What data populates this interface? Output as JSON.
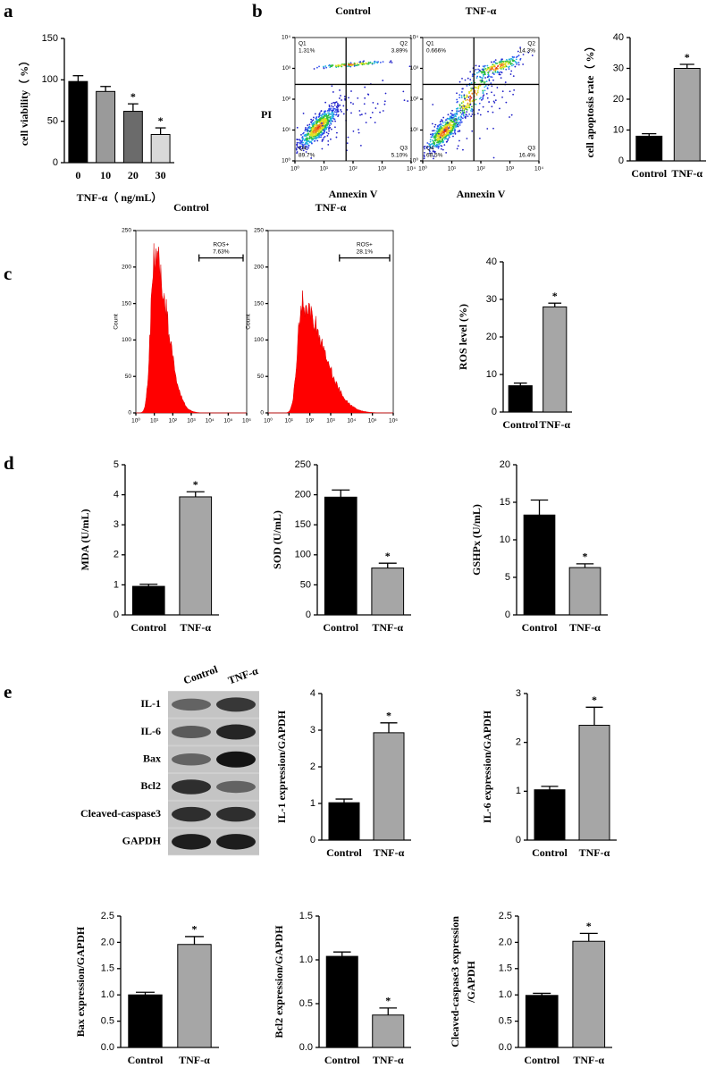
{
  "panels": [
    "a",
    "b",
    "c",
    "d",
    "e"
  ],
  "blot": {
    "lanes": [
      "Control",
      "TNF-α"
    ],
    "bands": [
      "IL-1",
      "IL-6",
      "Bax",
      "Bcl2",
      "Cleaved-caspase3",
      "GAPDH"
    ]
  },
  "chart_data": [
    {
      "type": "bar",
      "ylabel": "cell viability（ %）",
      "xlabel": "TNF-α（ ng/mL）",
      "categories": [
        "0",
        "10",
        "20",
        "30"
      ],
      "values": [
        98,
        86,
        62,
        34
      ],
      "errors": [
        7,
        6,
        9,
        8
      ],
      "colors": [
        "#000000",
        "#9a9a9a",
        "#6b6b6b",
        "#d9d9d9"
      ],
      "stars": [
        null,
        null,
        "*",
        "*"
      ],
      "ylim": [
        0,
        150
      ],
      "yticks": [
        0,
        50,
        100,
        150
      ]
    },
    {
      "type": "flow",
      "title": "Control",
      "xlabel": "Annexin V",
      "ylabel": "PI",
      "log": true,
      "xlim": [
        1,
        10000
      ],
      "ylim": [
        1,
        10000
      ],
      "xticks": [
        {
          "value": 1,
          "label": "10⁰"
        },
        {
          "value": 10,
          "label": "10¹"
        },
        {
          "value": 100,
          "label": "10²"
        },
        {
          "value": 1000,
          "label": "10³"
        },
        {
          "value": 10000,
          "label": "10⁴"
        }
      ],
      "yticks": [
        {
          "value": 1,
          "label": "10⁰"
        },
        {
          "value": 10,
          "label": "10¹"
        },
        {
          "value": 100,
          "label": "10²"
        },
        {
          "value": 1000,
          "label": "10³"
        },
        {
          "value": 10000,
          "label": "10⁴"
        }
      ],
      "quadrants": [
        {
          "name": "Q1",
          "label": "1.31%"
        },
        {
          "name": "Q2",
          "label": "3.89%"
        },
        {
          "name": "Q3",
          "label": "5.10%"
        },
        {
          "name": "Q4",
          "label": "89.7%"
        }
      ]
    },
    {
      "type": "flow",
      "title": "TNF-α",
      "xlabel": "Annexin V",
      "log": true,
      "xlim": [
        1,
        10000
      ],
      "ylim": [
        1,
        10000
      ],
      "xticks": [
        {
          "value": 1,
          "label": "10⁰"
        },
        {
          "value": 10,
          "label": "10¹"
        },
        {
          "value": 100,
          "label": "10²"
        },
        {
          "value": 1000,
          "label": "10³"
        },
        {
          "value": 10000,
          "label": "10⁴"
        }
      ],
      "yticks": [
        {
          "value": 1,
          "label": "10⁰"
        },
        {
          "value": 10,
          "label": "10¹"
        },
        {
          "value": 100,
          "label": "10²"
        },
        {
          "value": 1000,
          "label": "10³"
        },
        {
          "value": 10000,
          "label": "10⁴"
        }
      ],
      "quadrants": [
        {
          "name": "Q1",
          "label": "0.666%"
        },
        {
          "name": "Q2",
          "label": "14.3%"
        },
        {
          "name": "Q3",
          "label": "16.4%"
        },
        {
          "name": "Q4",
          "label": "68.5%"
        }
      ]
    },
    {
      "type": "bar",
      "ylabel": "cell apoptosis rate（ %）",
      "categories": [
        "Control",
        "TNF-α"
      ],
      "values": [
        8,
        30
      ],
      "errors": [
        0.8,
        1.3
      ],
      "colors": [
        "#000000",
        "#a6a6a6"
      ],
      "stars": [
        null,
        "*"
      ],
      "ylim": [
        0,
        40
      ],
      "yticks": [
        0,
        10,
        20,
        30,
        40
      ]
    },
    {
      "type": "flow-histogram",
      "title": "Control",
      "ylabel": "Count",
      "gate": {
        "name": "ROS+",
        "label": "7.63%"
      },
      "log": true,
      "xlim": [
        1,
        1000000
      ],
      "ylim": [
        0,
        250
      ],
      "xticks": [
        {
          "value": 1,
          "label": "10⁰"
        },
        {
          "value": 10,
          "label": "10¹"
        },
        {
          "value": 100,
          "label": "10²"
        },
        {
          "value": 1000,
          "label": "10³"
        },
        {
          "value": 10000,
          "label": "10⁴"
        },
        {
          "value": 100000,
          "label": "10⁵"
        },
        {
          "value": 1000000,
          "label": "10⁶"
        }
      ],
      "yticks": [
        0,
        50,
        100,
        150,
        200,
        250
      ]
    },
    {
      "type": "flow-histogram",
      "title": "TNF-α",
      "ylabel": "Count",
      "gate": {
        "name": "ROS+",
        "label": "28.1%"
      },
      "log": true,
      "xlim": [
        1,
        1000000
      ],
      "ylim": [
        0,
        250
      ],
      "xticks": [
        {
          "value": 1,
          "label": "10⁰"
        },
        {
          "value": 10,
          "label": "10¹"
        },
        {
          "value": 100,
          "label": "10²"
        },
        {
          "value": 1000,
          "label": "10³"
        },
        {
          "value": 10000,
          "label": "10⁴"
        },
        {
          "value": 100000,
          "label": "10⁵"
        },
        {
          "value": 1000000,
          "label": "10⁶"
        }
      ],
      "yticks": [
        0,
        50,
        100,
        150,
        200,
        250
      ]
    },
    {
      "type": "bar",
      "ylabel": "ROS level (%)",
      "categories": [
        "Control",
        "TNF-α"
      ],
      "values": [
        7,
        28
      ],
      "errors": [
        0.7,
        1
      ],
      "colors": [
        "#000000",
        "#a6a6a6"
      ],
      "stars": [
        null,
        "*"
      ],
      "ylim": [
        0,
        40
      ],
      "yticks": [
        0,
        10,
        20,
        30,
        40
      ]
    },
    {
      "type": "bar",
      "ylabel": "MDA (U/mL)",
      "categories": [
        "Control",
        "TNF-α"
      ],
      "values": [
        0.95,
        3.93
      ],
      "errors": [
        0.07,
        0.17
      ],
      "colors": [
        "#000000",
        "#a6a6a6"
      ],
      "stars": [
        null,
        "*"
      ],
      "ylim": [
        0,
        5
      ],
      "yticks": [
        0,
        1,
        2,
        3,
        4,
        5
      ]
    },
    {
      "type": "bar",
      "ylabel": "SOD (U/mL)",
      "categories": [
        "Control",
        "TNF-α"
      ],
      "values": [
        196,
        78
      ],
      "errors": [
        12,
        8
      ],
      "colors": [
        "#000000",
        "#a6a6a6"
      ],
      "stars": [
        null,
        "*"
      ],
      "ylim": [
        0,
        250
      ],
      "yticks": [
        0,
        50,
        100,
        150,
        200,
        250
      ]
    },
    {
      "type": "bar",
      "ylabel": "GSHPx (U/mL)",
      "categories": [
        "Control",
        "TNF-α"
      ],
      "values": [
        13.3,
        6.3
      ],
      "errors": [
        2,
        0.5
      ],
      "colors": [
        "#000000",
        "#a6a6a6"
      ],
      "stars": [
        null,
        "*"
      ],
      "ylim": [
        0,
        20
      ],
      "yticks": [
        0,
        5,
        10,
        15,
        20
      ]
    },
    {
      "type": "bar",
      "ylabel": "IL-1 expression/GAPDH",
      "categories": [
        "Control",
        "TNF-α"
      ],
      "values": [
        1.02,
        2.93
      ],
      "errors": [
        0.1,
        0.27
      ],
      "colors": [
        "#000000",
        "#a6a6a6"
      ],
      "stars": [
        null,
        "*"
      ],
      "ylim": [
        0,
        4
      ],
      "yticks": [
        0,
        1,
        2,
        3,
        4
      ]
    },
    {
      "type": "bar",
      "ylabel": "IL-6 expression/GAPDH",
      "categories": [
        "Control",
        "TNF-α"
      ],
      "values": [
        1.03,
        2.35
      ],
      "errors": [
        0.07,
        0.37
      ],
      "colors": [
        "#000000",
        "#a6a6a6"
      ],
      "stars": [
        null,
        "*"
      ],
      "ylim": [
        0,
        3
      ],
      "yticks": [
        0,
        1,
        2,
        3
      ]
    },
    {
      "type": "bar",
      "ylabel": "Bax expression/GAPDH",
      "categories": [
        "Control",
        "TNF-α"
      ],
      "values": [
        1.0,
        1.96
      ],
      "errors": [
        0.05,
        0.15
      ],
      "colors": [
        "#000000",
        "#a6a6a6"
      ],
      "stars": [
        null,
        "*"
      ],
      "ylim": [
        0,
        2.5
      ],
      "yticks": [
        {
          "value": 0,
          "label": "0.0"
        },
        0.5,
        {
          "value": 1,
          "label": "1.0"
        },
        1.5,
        {
          "value": 2,
          "label": "2.0"
        },
        2.5
      ]
    },
    {
      "type": "bar",
      "ylabel": "Bcl2 expression/GAPDH",
      "categories": [
        "Control",
        "TNF-α"
      ],
      "values": [
        1.04,
        0.37
      ],
      "errors": [
        0.05,
        0.08
      ],
      "colors": [
        "#000000",
        "#a6a6a6"
      ],
      "stars": [
        null,
        "*"
      ],
      "ylim": [
        0,
        1.5
      ],
      "yticks": [
        {
          "value": 0,
          "label": "0.0"
        },
        0.5,
        {
          "value": 1,
          "label": "1.0"
        },
        1.5
      ]
    },
    {
      "type": "bar",
      "ylabel": [
        "Cleaved-caspase3 expression",
        "/GAPDH"
      ],
      "categories": [
        "Control",
        "TNF-α"
      ],
      "values": [
        0.99,
        2.02
      ],
      "errors": [
        0.04,
        0.15
      ],
      "colors": [
        "#000000",
        "#a6a6a6"
      ],
      "stars": [
        null,
        "*"
      ],
      "ylim": [
        0,
        2.5
      ],
      "yticks": [
        {
          "value": 0,
          "label": "0.0"
        },
        0.5,
        {
          "value": 1,
          "label": "1.0"
        },
        1.5,
        {
          "value": 2,
          "label": "2.0"
        },
        2.5
      ]
    }
  ]
}
